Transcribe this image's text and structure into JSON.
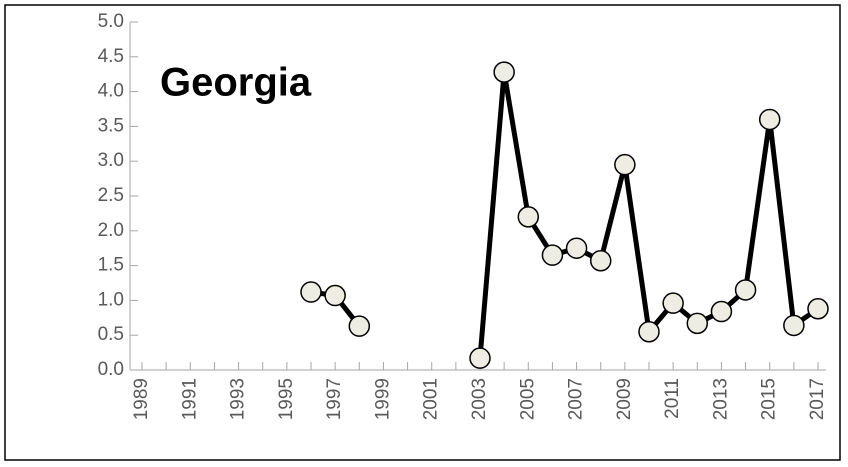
{
  "chart_data": {
    "type": "line",
    "title": "Georgia",
    "categories": [
      "1989",
      null,
      "1991",
      null,
      "1993",
      null,
      "1995",
      null,
      "1997",
      null,
      "1999",
      null,
      "2001",
      null,
      "2003",
      null,
      "2005",
      null,
      "2007",
      null,
      "2009",
      null,
      "2011",
      null,
      "2013",
      null,
      "2015",
      null,
      "2017"
    ],
    "series": [
      {
        "name": "Georgia",
        "color": "#000000",
        "values": [
          null,
          null,
          null,
          null,
          null,
          null,
          null,
          1.12,
          1.07,
          0.63,
          null,
          null,
          null,
          null,
          0.17,
          4.28,
          2.2,
          1.65,
          1.75,
          1.57,
          2.95,
          0.55,
          0.96,
          0.67,
          0.84,
          1.15,
          3.6,
          0.64,
          0.88
        ]
      }
    ],
    "ylim": [
      0,
      5
    ],
    "yticks": [
      {
        "value": 0,
        "label": "0.0"
      },
      0.5,
      {
        "value": 1,
        "label": "1.0"
      },
      1.5,
      {
        "value": 2,
        "label": "2.0"
      },
      2.5,
      {
        "value": 3,
        "label": "3.0"
      },
      3.5,
      {
        "value": 4,
        "label": "4.0"
      },
      4.5,
      {
        "value": 5,
        "label": "5.0"
      }
    ],
    "marker_fill": "#eeede3"
  }
}
